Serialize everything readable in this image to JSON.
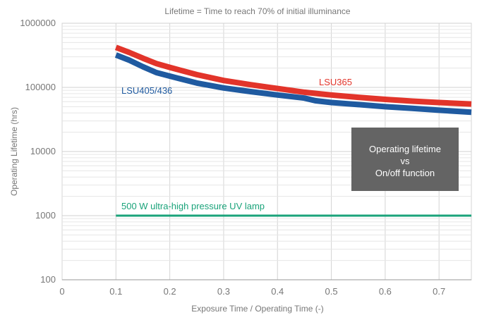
{
  "chart_data": {
    "type": "line",
    "title": "Lifetime = Time to reach 70% of initial illuminance",
    "xlabel": "Exposure Time / Operating Time (-)",
    "ylabel": "Operating Lifetime (hrs)",
    "y_scale": "log",
    "xlim": [
      0,
      0.76
    ],
    "ylim": [
      100,
      1000000
    ],
    "x_ticks": [
      0,
      0.1,
      0.2,
      0.3,
      0.4,
      0.5,
      0.6,
      0.7
    ],
    "x_tick_labels": [
      "0",
      "0.1",
      "0.2",
      "0.3",
      "0.4",
      "0.5",
      "0.6",
      "0.7"
    ],
    "y_ticks": [
      100,
      1000,
      10000,
      100000,
      1000000
    ],
    "y_tick_labels": [
      "100",
      "1000",
      "10000",
      100000,
      "1000000"
    ],
    "grid": true,
    "series": [
      {
        "name": "LSU365",
        "color": "#e2342a",
        "x": [
          0.1,
          0.125,
          0.15,
          0.175,
          0.2,
          0.25,
          0.3,
          0.35,
          0.4,
          0.45,
          0.5,
          0.55,
          0.6,
          0.65,
          0.7,
          0.76
        ],
        "y": [
          420000,
          350000,
          285000,
          235000,
          205000,
          158000,
          128000,
          110000,
          96000,
          84000,
          76000,
          70000,
          65000,
          61000,
          58000,
          55000
        ]
      },
      {
        "name": "LSU405/436",
        "color": "#1f5aa0",
        "x": [
          0.1,
          0.125,
          0.15,
          0.175,
          0.2,
          0.25,
          0.3,
          0.35,
          0.4,
          0.45,
          0.47,
          0.5,
          0.55,
          0.6,
          0.65,
          0.7,
          0.76
        ],
        "y": [
          320000,
          265000,
          210000,
          170000,
          150000,
          117000,
          98000,
          86000,
          76000,
          68000,
          62000,
          58000,
          54000,
          50000,
          47000,
          44000,
          41000
        ]
      },
      {
        "name": "500 W ultra-high pressure UV lamp",
        "color": "#1aa37a",
        "x": [
          0.1,
          0.76
        ],
        "y": [
          1000,
          1000
        ]
      }
    ],
    "annotation_box": {
      "lines": [
        "Operating lifetime",
        "vs",
        "On/off function"
      ],
      "color": "#646464"
    }
  }
}
